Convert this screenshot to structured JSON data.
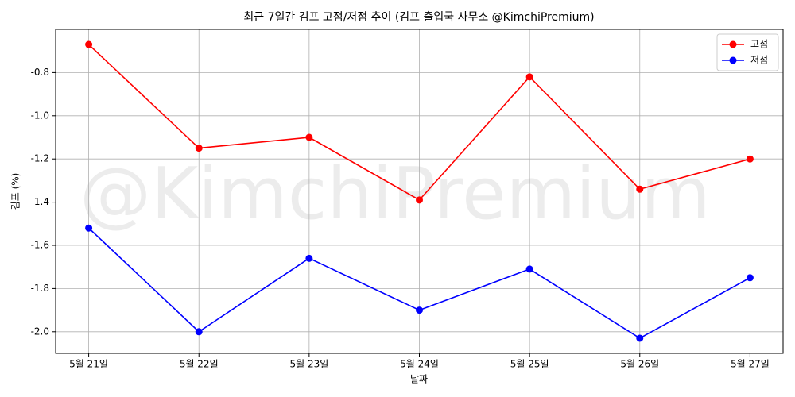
{
  "chart_data": {
    "type": "line",
    "title": "최근 7일간 김프 고점/저점 추이 (김프 출입국 사무소 @KimchiPremium)",
    "watermark": "@KimchiPremium",
    "x_label": "날짜",
    "y_label": "김프 (%)",
    "categories": [
      "5월 21일",
      "5월 22일",
      "5월 23일",
      "5월 24일",
      "5월 25일",
      "5월 26일",
      "5월 27일"
    ],
    "series": [
      {
        "name": "고점",
        "color": "#ff0000",
        "values": [
          -0.67,
          -1.15,
          -1.1,
          -1.39,
          -0.82,
          -1.34,
          -1.2
        ]
      },
      {
        "name": "저점",
        "color": "#0000ff",
        "values": [
          -1.52,
          -2.0,
          -1.66,
          -1.9,
          -1.71,
          -2.03,
          -1.75
        ]
      }
    ],
    "ylim": [
      -2.1,
      -0.6
    ],
    "yticks": [
      -0.8,
      {
        "value": -1.0,
        "label": "-1.0"
      },
      -1.2,
      -1.4,
      -1.6,
      -1.8,
      {
        "value": -2.0,
        "label": "-2.0"
      }
    ],
    "grid": true,
    "legend": "upper right"
  }
}
